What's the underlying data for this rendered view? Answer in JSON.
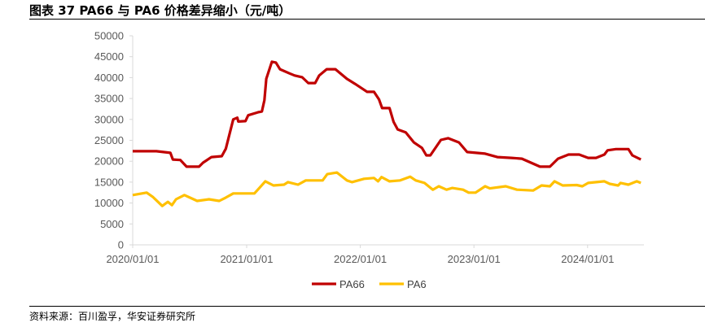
{
  "title": "图表 37 PA66 与 PA6 价格差异缩小（元/吨）",
  "source": "资料来源：百川盈孚，华安证券研究所",
  "chart_data": {
    "type": "line",
    "title": "图表 37 PA66 与 PA6 价格差异缩小（元/吨）",
    "xlabel": "",
    "ylabel": "",
    "ylim": [
      0,
      50000
    ],
    "yticks": [
      "0",
      "5000",
      "10000",
      "15000",
      "20000",
      "25000",
      "30000",
      "35000",
      "40000",
      "45000",
      "50000"
    ],
    "xlim": [
      "2020-01-01",
      "2024-06-30"
    ],
    "xticks": [
      "2020/01/01",
      "2021/01/01",
      "2022/01/01",
      "2023/01/01",
      "2024/01/01"
    ],
    "grid": false,
    "legend": "bottom",
    "series": [
      {
        "name": "PA66",
        "color": "#C00000",
        "points": [
          [
            "2020-01-01",
            22400
          ],
          [
            "2020-03-17",
            22400
          ],
          [
            "2020-05-01",
            22000
          ],
          [
            "2020-05-09",
            20400
          ],
          [
            "2020-06-02",
            20300
          ],
          [
            "2020-06-22",
            18700
          ],
          [
            "2020-08-01",
            18700
          ],
          [
            "2020-08-14",
            19650
          ],
          [
            "2020-09-10",
            21000
          ],
          [
            "2020-10-13",
            21200
          ],
          [
            "2020-10-26",
            23000
          ],
          [
            "2020-11-19",
            30000
          ],
          [
            "2020-12-02",
            30400
          ],
          [
            "2020-12-05",
            29500
          ],
          [
            "2020-12-28",
            29600
          ],
          [
            "2021-01-06",
            31000
          ],
          [
            "2021-02-06",
            31700
          ],
          [
            "2021-02-19",
            31900
          ],
          [
            "2021-02-27",
            34600
          ],
          [
            "2021-03-05",
            39700
          ],
          [
            "2021-03-23",
            43800
          ],
          [
            "2021-04-05",
            43600
          ],
          [
            "2021-04-18",
            42000
          ],
          [
            "2021-05-19",
            41000
          ],
          [
            "2021-06-04",
            40500
          ],
          [
            "2021-06-28",
            40100
          ],
          [
            "2021-07-18",
            38700
          ],
          [
            "2021-08-09",
            38700
          ],
          [
            "2021-08-22",
            40500
          ],
          [
            "2021-09-15",
            42000
          ],
          [
            "2021-10-13",
            42000
          ],
          [
            "2021-11-19",
            39700
          ],
          [
            "2021-12-15",
            38500
          ],
          [
            "2022-01-23",
            36600
          ],
          [
            "2022-02-14",
            36600
          ],
          [
            "2022-03-02",
            34800
          ],
          [
            "2022-03-12",
            32700
          ],
          [
            "2022-04-05",
            32700
          ],
          [
            "2022-04-18",
            29400
          ],
          [
            "2022-05-01",
            27600
          ],
          [
            "2022-05-27",
            26900
          ],
          [
            "2022-06-22",
            24500
          ],
          [
            "2022-07-18",
            23200
          ],
          [
            "2022-08-01",
            21400
          ],
          [
            "2022-08-14",
            21400
          ],
          [
            "2022-09-17",
            25100
          ],
          [
            "2022-10-10",
            25500
          ],
          [
            "2022-11-14",
            24500
          ],
          [
            "2022-12-10",
            22200
          ],
          [
            "2023-02-06",
            21800
          ],
          [
            "2023-03-17",
            21000
          ],
          [
            "2023-05-01",
            20800
          ],
          [
            "2023-06-04",
            20600
          ],
          [
            "2023-08-01",
            18700
          ],
          [
            "2023-09-02",
            18700
          ],
          [
            "2023-09-28",
            20600
          ],
          [
            "2023-11-01",
            21600
          ],
          [
            "2023-12-05",
            21600
          ],
          [
            "2024-01-03",
            20800
          ],
          [
            "2024-01-28",
            20800
          ],
          [
            "2024-02-24",
            21600
          ],
          [
            "2024-03-05",
            22600
          ],
          [
            "2024-04-01",
            22900
          ],
          [
            "2024-05-11",
            22900
          ],
          [
            "2024-05-24",
            21400
          ],
          [
            "2024-06-20",
            20400
          ]
        ]
      },
      {
        "name": "PA6",
        "color": "#FFC000",
        "points": [
          [
            "2020-01-01",
            11900
          ],
          [
            "2020-02-15",
            12500
          ],
          [
            "2020-03-05",
            11500
          ],
          [
            "2020-04-05",
            9300
          ],
          [
            "2020-04-23",
            10300
          ],
          [
            "2020-05-06",
            9500
          ],
          [
            "2020-05-19",
            10900
          ],
          [
            "2020-06-15",
            11900
          ],
          [
            "2020-07-26",
            10500
          ],
          [
            "2020-09-02",
            10900
          ],
          [
            "2020-10-05",
            10500
          ],
          [
            "2020-10-26",
            11300
          ],
          [
            "2020-11-19",
            12300
          ],
          [
            "2020-12-23",
            12300
          ],
          [
            "2021-01-26",
            12300
          ],
          [
            "2021-02-06",
            13200
          ],
          [
            "2021-03-02",
            15200
          ],
          [
            "2021-03-28",
            14200
          ],
          [
            "2021-05-01",
            14400
          ],
          [
            "2021-05-14",
            15000
          ],
          [
            "2021-06-15",
            14400
          ],
          [
            "2021-07-10",
            15400
          ],
          [
            "2021-09-02",
            15400
          ],
          [
            "2021-09-17",
            16900
          ],
          [
            "2021-10-18",
            17300
          ],
          [
            "2021-11-19",
            15400
          ],
          [
            "2021-12-05",
            15000
          ],
          [
            "2022-01-13",
            15800
          ],
          [
            "2022-02-14",
            16000
          ],
          [
            "2022-02-27",
            15200
          ],
          [
            "2022-03-10",
            16200
          ],
          [
            "2022-04-05",
            15200
          ],
          [
            "2022-05-09",
            15400
          ],
          [
            "2022-06-10",
            16300
          ],
          [
            "2022-06-28",
            15400
          ],
          [
            "2022-07-26",
            14800
          ],
          [
            "2022-08-22",
            13200
          ],
          [
            "2022-09-10",
            14000
          ],
          [
            "2022-10-05",
            13200
          ],
          [
            "2022-10-23",
            13600
          ],
          [
            "2022-11-27",
            13200
          ],
          [
            "2022-12-15",
            12500
          ],
          [
            "2023-01-06",
            12500
          ],
          [
            "2023-02-06",
            14000
          ],
          [
            "2023-02-21",
            13500
          ],
          [
            "2023-04-13",
            14000
          ],
          [
            "2023-05-19",
            13200
          ],
          [
            "2023-07-10",
            13000
          ],
          [
            "2023-08-06",
            14200
          ],
          [
            "2023-09-02",
            14000
          ],
          [
            "2023-09-17",
            15200
          ],
          [
            "2023-10-13",
            14200
          ],
          [
            "2023-11-27",
            14300
          ],
          [
            "2023-12-15",
            14000
          ],
          [
            "2024-01-03",
            14800
          ],
          [
            "2024-02-24",
            15200
          ],
          [
            "2024-03-12",
            14600
          ],
          [
            "2024-04-08",
            14200
          ],
          [
            "2024-04-16",
            14800
          ],
          [
            "2024-05-11",
            14400
          ],
          [
            "2024-06-07",
            15200
          ],
          [
            "2024-06-20",
            14800
          ]
        ]
      }
    ]
  }
}
